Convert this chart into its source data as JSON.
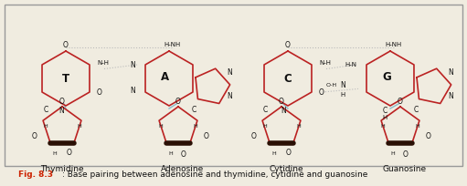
{
  "bg_color": "#f0ece0",
  "ring_color": "#bb2222",
  "sugar_color": "#bb2222",
  "bond_line_color": "#aaaaaa",
  "hbond_color": "#bbbbbb",
  "blue_line": "#88bbcc",
  "black": "#111111",
  "caption_red": "#cc2200",
  "caption_black": "#111111",
  "fig_width": 5.11,
  "fig_height": 2.04,
  "dpi": 100,
  "xlim": [
    0,
    511
  ],
  "ylim": [
    0,
    204
  ]
}
